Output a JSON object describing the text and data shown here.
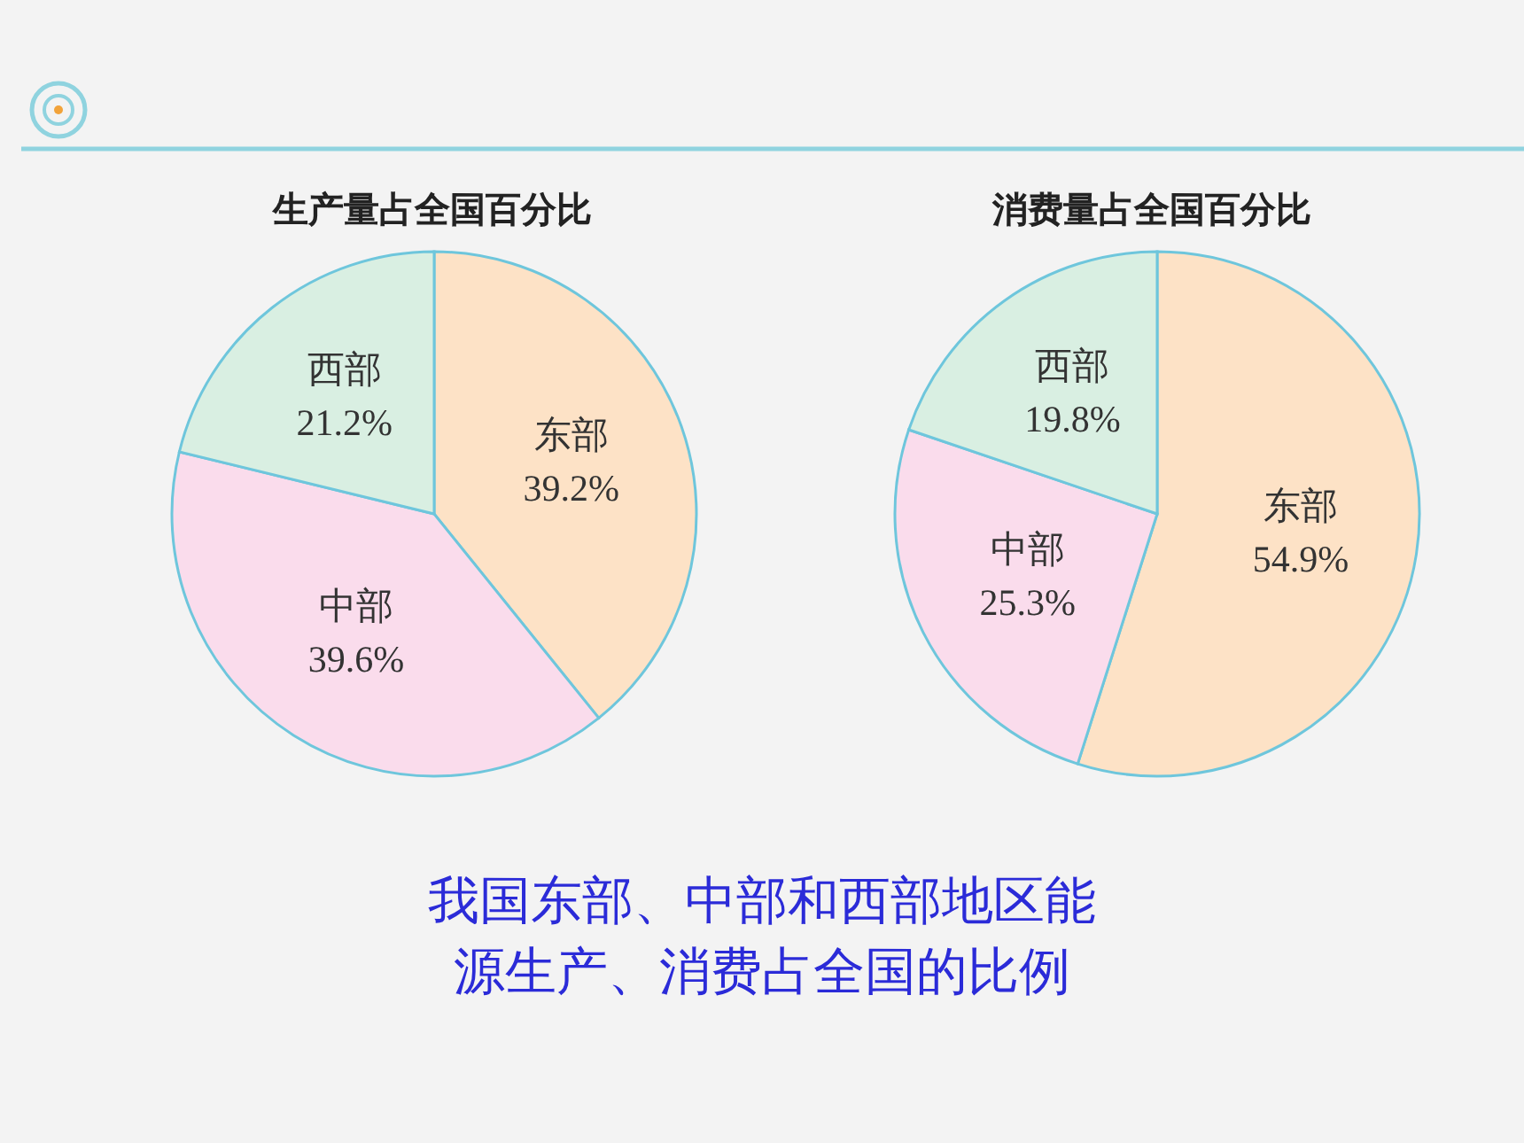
{
  "chart_data": [
    {
      "type": "pie",
      "title": "生产量占全国百分比",
      "categories": [
        "东部",
        "中部",
        "西部"
      ],
      "values": [
        39.2,
        39.6,
        21.2
      ],
      "colors": [
        "#fde2c6",
        "#fadcec",
        "#d9efe2"
      ],
      "value_labels": [
        "39.2%",
        "39.6%",
        "21.2%"
      ],
      "annotations": [
        "我国东部、中部和西部地区能源生产、消费占全国的比例"
      ]
    },
    {
      "type": "pie",
      "title": "消费量占全国百分比",
      "categories": [
        "东部",
        "中部",
        "西部"
      ],
      "values": [
        54.9,
        25.3,
        19.8
      ],
      "colors": [
        "#fde2c6",
        "#fadcec",
        "#d9efe2"
      ],
      "value_labels": [
        "54.9%",
        "25.3%",
        "19.8%"
      ]
    }
  ]
}
